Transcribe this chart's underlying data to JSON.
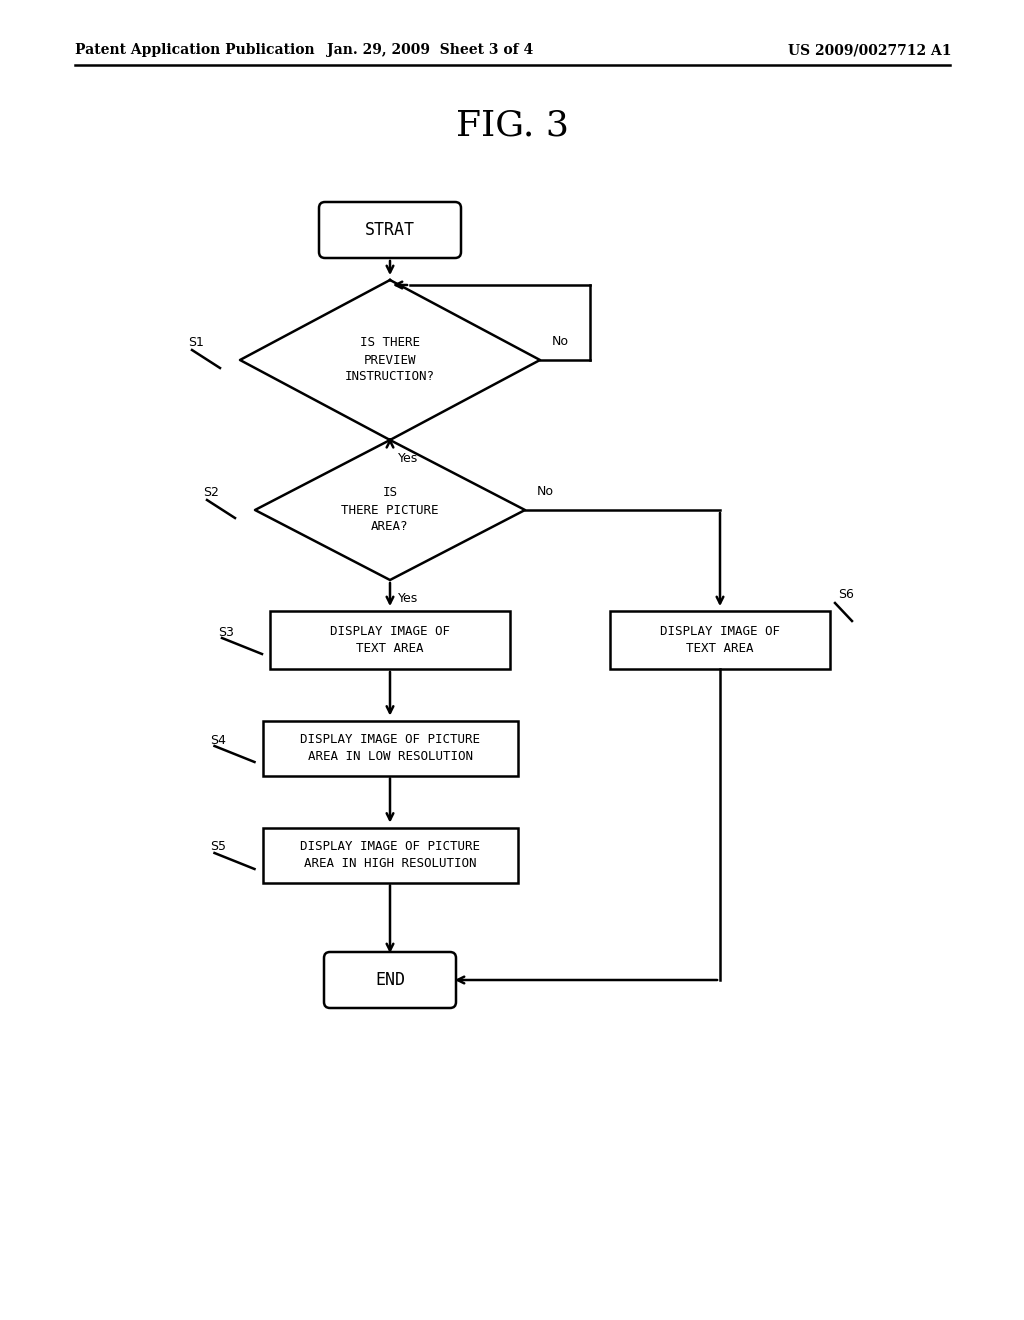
{
  "title": "FIG. 3",
  "header_left": "Patent Application Publication",
  "header_center": "Jan. 29, 2009  Sheet 3 of 4",
  "header_right": "US 2009/0027712 A1",
  "bg_color": "#ffffff",
  "start_text": "STRAT",
  "end_text": "END",
  "d1_text": "IS THERE\nPREVIEW\nINSTRUCTION?",
  "d2_text": "IS\nTHERE PICTURE\nAREA?",
  "s3_text": "DISPLAY IMAGE OF\nTEXT AREA",
  "s4_text": "DISPLAY IMAGE OF PICTURE\nAREA IN LOW RESOLUTION",
  "s5_text": "DISPLAY IMAGE OF PICTURE\nAREA IN HIGH RESOLUTION",
  "s6_text": "DISPLAY IMAGE OF\nTEXT AREA",
  "no_label": "No",
  "yes_label": "Yes",
  "s1_label": "S1",
  "s2_label": "S2",
  "s3_label": "S3",
  "s4_label": "S4",
  "s5_label": "S5",
  "s6_label": "S6"
}
